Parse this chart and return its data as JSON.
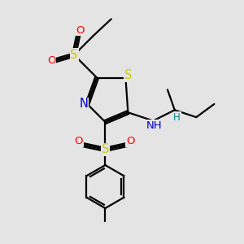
{
  "bg_color": "#e4e4e4",
  "atom_colors": {
    "S": "#cccc00",
    "O": "#ff0000",
    "N": "#0000cc",
    "C": "#000000",
    "H": "#008888"
  },
  "bond_color": "#000000",
  "font_size": 9.5
}
